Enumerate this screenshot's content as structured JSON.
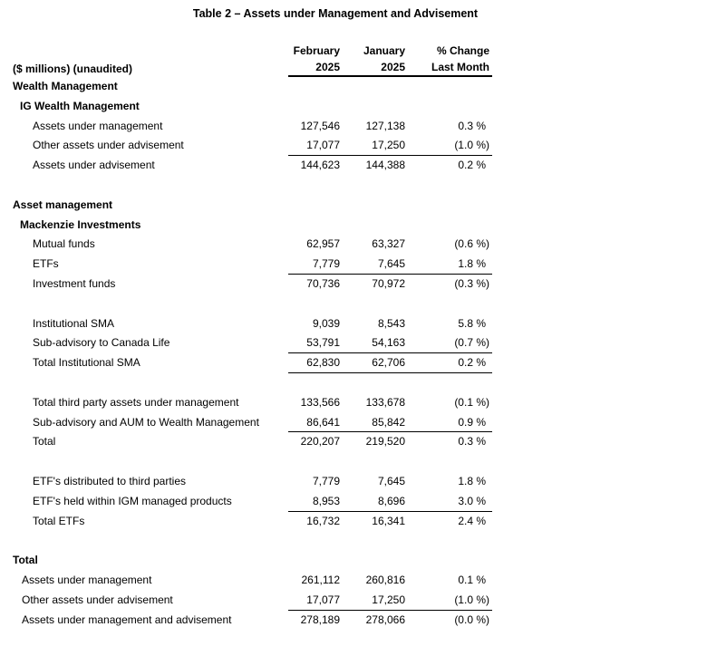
{
  "title": "Table 2 – Assets under Management and Advisement",
  "colors": {
    "text": "#000000",
    "background": "#ffffff",
    "rule": "#000000"
  },
  "table": {
    "unit_label": "($ millions) (unaudited)",
    "columns": [
      {
        "line1": "February",
        "line2": "2025"
      },
      {
        "line1": "January",
        "line2": "2025"
      },
      {
        "line1": "% Change",
        "line2": "Last Month"
      }
    ],
    "rows": [
      {
        "type": "section",
        "label": "Wealth Management",
        "level": 0
      },
      {
        "type": "section",
        "label": "IG Wealth Management",
        "level": 1
      },
      {
        "type": "data",
        "label": "Assets under management",
        "level": 2,
        "feb": "127,546",
        "jan": "127,138",
        "pct": "0.3 %"
      },
      {
        "type": "data",
        "label": "Other assets under advisement",
        "level": 2,
        "feb": "17,077",
        "jan": "17,250",
        "pct": "(1.0 %)",
        "line_below": true
      },
      {
        "type": "data",
        "label": "Assets under advisement",
        "level": 2,
        "feb": "144,623",
        "jan": "144,388",
        "pct": "0.2 %"
      },
      {
        "type": "spacer"
      },
      {
        "type": "section",
        "label": "Asset management",
        "level": 0
      },
      {
        "type": "section",
        "label": "Mackenzie Investments",
        "level": 1
      },
      {
        "type": "data",
        "label": "Mutual funds",
        "level": 2,
        "feb": "62,957",
        "jan": "63,327",
        "pct": "(0.6 %)"
      },
      {
        "type": "data",
        "label": "ETFs",
        "level": 2,
        "feb": "7,779",
        "jan": "7,645",
        "pct": "1.8 %",
        "line_below": true
      },
      {
        "type": "data",
        "label": "Investment funds",
        "level": 2,
        "feb": "70,736",
        "jan": "70,972",
        "pct": "(0.3 %)"
      },
      {
        "type": "spacer"
      },
      {
        "type": "data",
        "label": "Institutional SMA",
        "level": 2,
        "feb": "9,039",
        "jan": "8,543",
        "pct": "5.8 %"
      },
      {
        "type": "data",
        "label": "Sub-advisory to Canada Life",
        "level": 2,
        "feb": "53,791",
        "jan": "54,163",
        "pct": "(0.7 %)",
        "line_below": true
      },
      {
        "type": "data",
        "label": "Total Institutional SMA",
        "level": 2,
        "feb": "62,830",
        "jan": "62,706",
        "pct": "0.2 %",
        "line_below": true
      },
      {
        "type": "spacer"
      },
      {
        "type": "data",
        "label": "Total third party assets under management",
        "level": 2,
        "feb": "133,566",
        "jan": "133,678",
        "pct": "(0.1 %)"
      },
      {
        "type": "data",
        "label": "Sub-advisory and AUM to Wealth Management",
        "level": 2,
        "feb": "86,641",
        "jan": "85,842",
        "pct": "0.9 %",
        "line_below": true
      },
      {
        "type": "data",
        "label": "Total",
        "level": 2,
        "feb": "220,207",
        "jan": "219,520",
        "pct": "0.3 %"
      },
      {
        "type": "spacer"
      },
      {
        "type": "data",
        "label": "ETF's distributed to third parties",
        "level": 2,
        "feb": "7,779",
        "jan": "7,645",
        "pct": "1.8 %"
      },
      {
        "type": "data",
        "label": "ETF's held within IGM managed products",
        "level": 2,
        "feb": "8,953",
        "jan": "8,696",
        "pct": "3.0 %",
        "line_below": true
      },
      {
        "type": "data",
        "label": "Total ETFs",
        "level": 2,
        "feb": "16,732",
        "jan": "16,341",
        "pct": "2.4 %"
      },
      {
        "type": "spacer"
      },
      {
        "type": "section",
        "label": "Total",
        "level": 0
      },
      {
        "type": "data",
        "label": "Assets under management",
        "level": 3,
        "feb": "261,112",
        "jan": "260,816",
        "pct": "0.1 %"
      },
      {
        "type": "data",
        "label": "Other assets under advisement",
        "level": 3,
        "feb": "17,077",
        "jan": "17,250",
        "pct": "(1.0 %)",
        "line_below": true
      },
      {
        "type": "data",
        "label": "Assets under management and advisement",
        "level": 3,
        "feb": "278,189",
        "jan": "278,066",
        "pct": "(0.0 %)"
      }
    ]
  }
}
